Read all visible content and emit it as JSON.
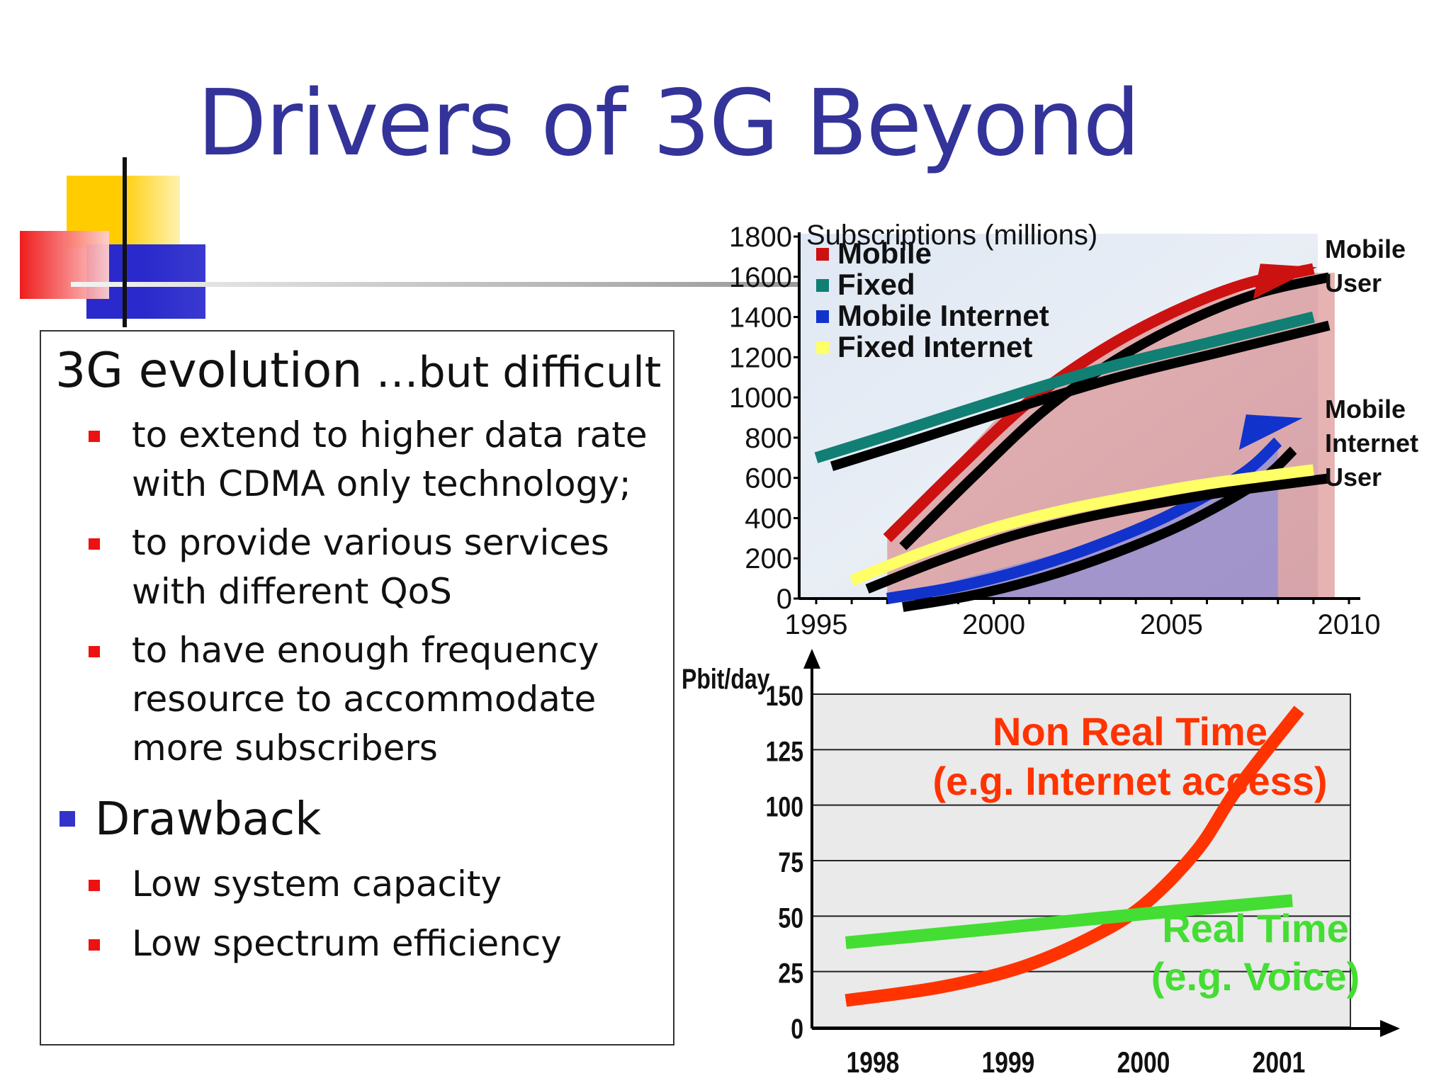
{
  "slide": {
    "title": "Drivers of 3G Beyond"
  },
  "textbox": {
    "heading_main": "3G evolution",
    "heading_suffix": " …but difficult",
    "bullets": [
      {
        "lines": [
          "to extend to higher data rate",
          "with CDMA only technology;"
        ]
      },
      {
        "lines": [
          "to provide various services",
          "with different QoS"
        ]
      },
      {
        "lines": [
          "to have enough frequency",
          "resource to accommodate",
          "more subscribers"
        ]
      }
    ],
    "drawback_label": "Drawback",
    "drawbacks": [
      "Low system capacity",
      "Low spectrum efficiency"
    ]
  },
  "chart_data": [
    {
      "type": "line",
      "title": "Subscriptions (millions)",
      "x": [
        1995,
        1997,
        2000,
        2002,
        2005,
        2008,
        2009
      ],
      "xticks": [
        "1995",
        "2000",
        "2005",
        "2010"
      ],
      "xlim": [
        1995,
        2010
      ],
      "ylim": [
        0,
        1800
      ],
      "yticks": [
        "0",
        "200",
        "400",
        "600",
        "800",
        "1000",
        "1200",
        "1400",
        "1600",
        "1800"
      ],
      "legend": [
        "Mobile",
        "Fixed",
        "Mobile Internet",
        "Fixed Internet"
      ],
      "series": [
        {
          "name": "Mobile",
          "color": "#cc1111",
          "points": [
            [
              1997,
              300
            ],
            [
              1999,
              650
            ],
            [
              2001,
              980
            ],
            [
              2003,
              1230
            ],
            [
              2005,
              1420
            ],
            [
              2007,
              1560
            ],
            [
              2009,
              1640
            ]
          ]
        },
        {
          "name": "Fixed",
          "color": "#117f74",
          "points": [
            [
              1995,
              700
            ],
            [
              1997,
              810
            ],
            [
              2000,
              980
            ],
            [
              2003,
              1140
            ],
            [
              2006,
              1270
            ],
            [
              2009,
              1400
            ]
          ]
        },
        {
          "name": "Mobile Internet",
          "color": "#1133cc",
          "points": [
            [
              1997,
              0
            ],
            [
              1999,
              60
            ],
            [
              2001,
              150
            ],
            [
              2003,
              270
            ],
            [
              2005,
              420
            ],
            [
              2007,
              620
            ],
            [
              2008,
              780
            ]
          ]
        },
        {
          "name": "Fixed Internet",
          "color": "#ffff66",
          "points": [
            [
              1996,
              90
            ],
            [
              1998,
              230
            ],
            [
              2000,
              350
            ],
            [
              2002,
              440
            ],
            [
              2004,
              510
            ],
            [
              2006,
              570
            ],
            [
              2009,
              640
            ]
          ]
        }
      ],
      "annotations": [
        {
          "text": [
            "Mobile",
            "User"
          ],
          "series": "Mobile"
        },
        {
          "text": [
            "Mobile",
            "Internet",
            "User"
          ],
          "series": "Mobile Internet"
        }
      ]
    },
    {
      "type": "line",
      "ylabel": "Pbit/day",
      "categories": [
        "1998",
        "1999",
        "2000",
        "2001"
      ],
      "x": [
        1998,
        1999,
        2000,
        2001
      ],
      "ylim": [
        0,
        150
      ],
      "yticks": [
        "0",
        "25",
        "50",
        "75",
        "100",
        "125",
        "150"
      ],
      "series": [
        {
          "name_lines": [
            "Non Real Time",
            "(e.g. Internet access)"
          ],
          "color": "#ff3300",
          "points": [
            [
              1997.8,
              12
            ],
            [
              1998.5,
              18
            ],
            [
              1999.1,
              27
            ],
            [
              1999.6,
              40
            ],
            [
              2000.0,
              55
            ],
            [
              2000.4,
              80
            ],
            [
              2000.7,
              108
            ],
            [
              2001.15,
              143
            ]
          ]
        },
        {
          "name_lines": [
            "Real Time",
            "(e.g. Voice)"
          ],
          "color": "#44dd33",
          "points": [
            [
              1997.8,
              38
            ],
            [
              1999.0,
              45
            ],
            [
              2000.0,
              51
            ],
            [
              2001.1,
              57
            ]
          ]
        }
      ]
    }
  ],
  "colors": {
    "title": "#33339a",
    "bullet_red": "#ee1111",
    "bullet_blue": "#3333cc"
  }
}
